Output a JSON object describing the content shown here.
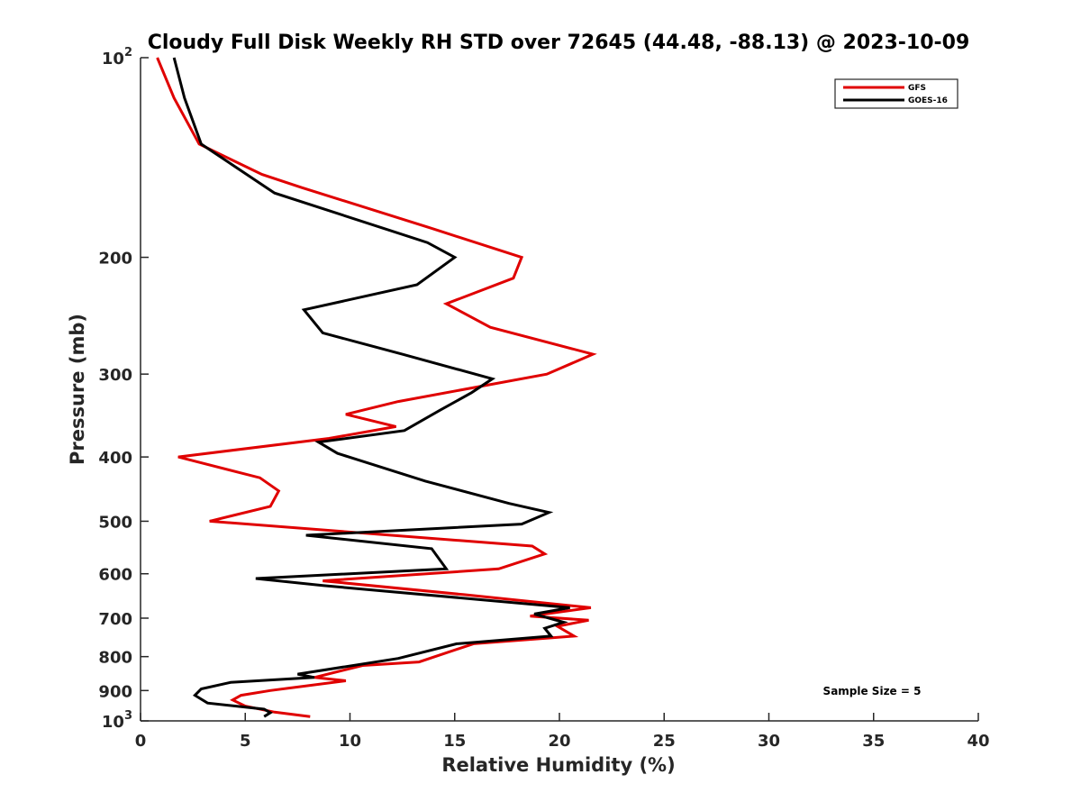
{
  "chart_data": {
    "type": "line",
    "title": "Cloudy Full Disk Weekly RH STD over 72645 (44.48, -88.13) @ 2023-10-09",
    "xlabel": "Relative Humidity (%)",
    "ylabel": "Pressure (mb)",
    "xlim": [
      0,
      40
    ],
    "ylim": [
      100,
      1000
    ],
    "yscale": "log",
    "y_reversed": true,
    "grid": false,
    "legend_position": "top-right",
    "x_ticks": [
      "0",
      "5",
      "10",
      "15",
      "20",
      "25",
      "30",
      "35",
      "40"
    ],
    "y_ticks": [
      {
        "value": 100,
        "base": "10",
        "exp": "2"
      },
      {
        "value": 200,
        "label": "200"
      },
      {
        "value": 300,
        "label": "300"
      },
      {
        "value": 400,
        "label": "400"
      },
      {
        "value": 500,
        "label": "500"
      },
      {
        "value": 600,
        "label": "600"
      },
      {
        "value": 700,
        "label": "700"
      },
      {
        "value": 800,
        "label": "800"
      },
      {
        "value": 900,
        "label": "900"
      },
      {
        "value": 1000,
        "base": "10",
        "exp": "3"
      }
    ],
    "annotation": "Sample Size = 5",
    "series": [
      {
        "name": "GFS",
        "color": "#e00000",
        "points": [
          [
            0.8,
            100
          ],
          [
            1.6,
            115
          ],
          [
            2.8,
            135
          ],
          [
            5.8,
            150
          ],
          [
            7.7,
            157
          ],
          [
            13.7,
            180
          ],
          [
            18.2,
            200
          ],
          [
            17.8,
            215
          ],
          [
            14.6,
            235
          ],
          [
            16.7,
            255
          ],
          [
            21.6,
            280
          ],
          [
            19.4,
            300
          ],
          [
            12.3,
            330
          ],
          [
            9.8,
            345
          ],
          [
            12.2,
            360
          ],
          [
            9.0,
            375
          ],
          [
            1.8,
            400
          ],
          [
            5.7,
            430
          ],
          [
            6.6,
            450
          ],
          [
            6.2,
            475
          ],
          [
            3.3,
            500
          ],
          [
            18.7,
            545
          ],
          [
            19.3,
            560
          ],
          [
            17.1,
            590
          ],
          [
            8.7,
            615
          ],
          [
            15.4,
            645
          ],
          [
            21.5,
            675
          ],
          [
            18.6,
            695
          ],
          [
            21.4,
            705
          ],
          [
            19.9,
            720
          ],
          [
            20.7,
            745
          ],
          [
            15.9,
            765
          ],
          [
            13.3,
            815
          ],
          [
            10.6,
            825
          ],
          [
            8.3,
            860
          ],
          [
            9.8,
            870
          ],
          [
            6.2,
            900
          ],
          [
            4.8,
            915
          ],
          [
            4.4,
            930
          ],
          [
            5.0,
            950
          ],
          [
            6.4,
            970
          ],
          [
            8.1,
            985
          ]
        ]
      },
      {
        "name": "GOES-16",
        "color": "#000000",
        "points": [
          [
            1.6,
            100
          ],
          [
            2.1,
            115
          ],
          [
            2.9,
            135
          ],
          [
            6.4,
            160
          ],
          [
            13.7,
            190
          ],
          [
            15.0,
            200
          ],
          [
            13.2,
            220
          ],
          [
            7.8,
            240
          ],
          [
            8.7,
            260
          ],
          [
            12.5,
            280
          ],
          [
            16.8,
            305
          ],
          [
            15.8,
            320
          ],
          [
            14.3,
            340
          ],
          [
            12.6,
            365
          ],
          [
            8.5,
            380
          ],
          [
            9.4,
            395
          ],
          [
            13.6,
            435
          ],
          [
            17.6,
            470
          ],
          [
            19.5,
            485
          ],
          [
            18.2,
            505
          ],
          [
            7.9,
            525
          ],
          [
            13.9,
            550
          ],
          [
            14.6,
            590
          ],
          [
            5.5,
            610
          ],
          [
            8.7,
            625
          ],
          [
            20.5,
            675
          ],
          [
            18.8,
            690
          ],
          [
            20.2,
            710
          ],
          [
            19.3,
            725
          ],
          [
            19.6,
            745
          ],
          [
            15.1,
            765
          ],
          [
            12.3,
            805
          ],
          [
            7.5,
            850
          ],
          [
            8.3,
            860
          ],
          [
            4.3,
            875
          ],
          [
            2.9,
            895
          ],
          [
            2.6,
            915
          ],
          [
            3.2,
            940
          ],
          [
            5.9,
            960
          ],
          [
            6.2,
            972
          ],
          [
            5.9,
            985
          ]
        ]
      }
    ]
  }
}
